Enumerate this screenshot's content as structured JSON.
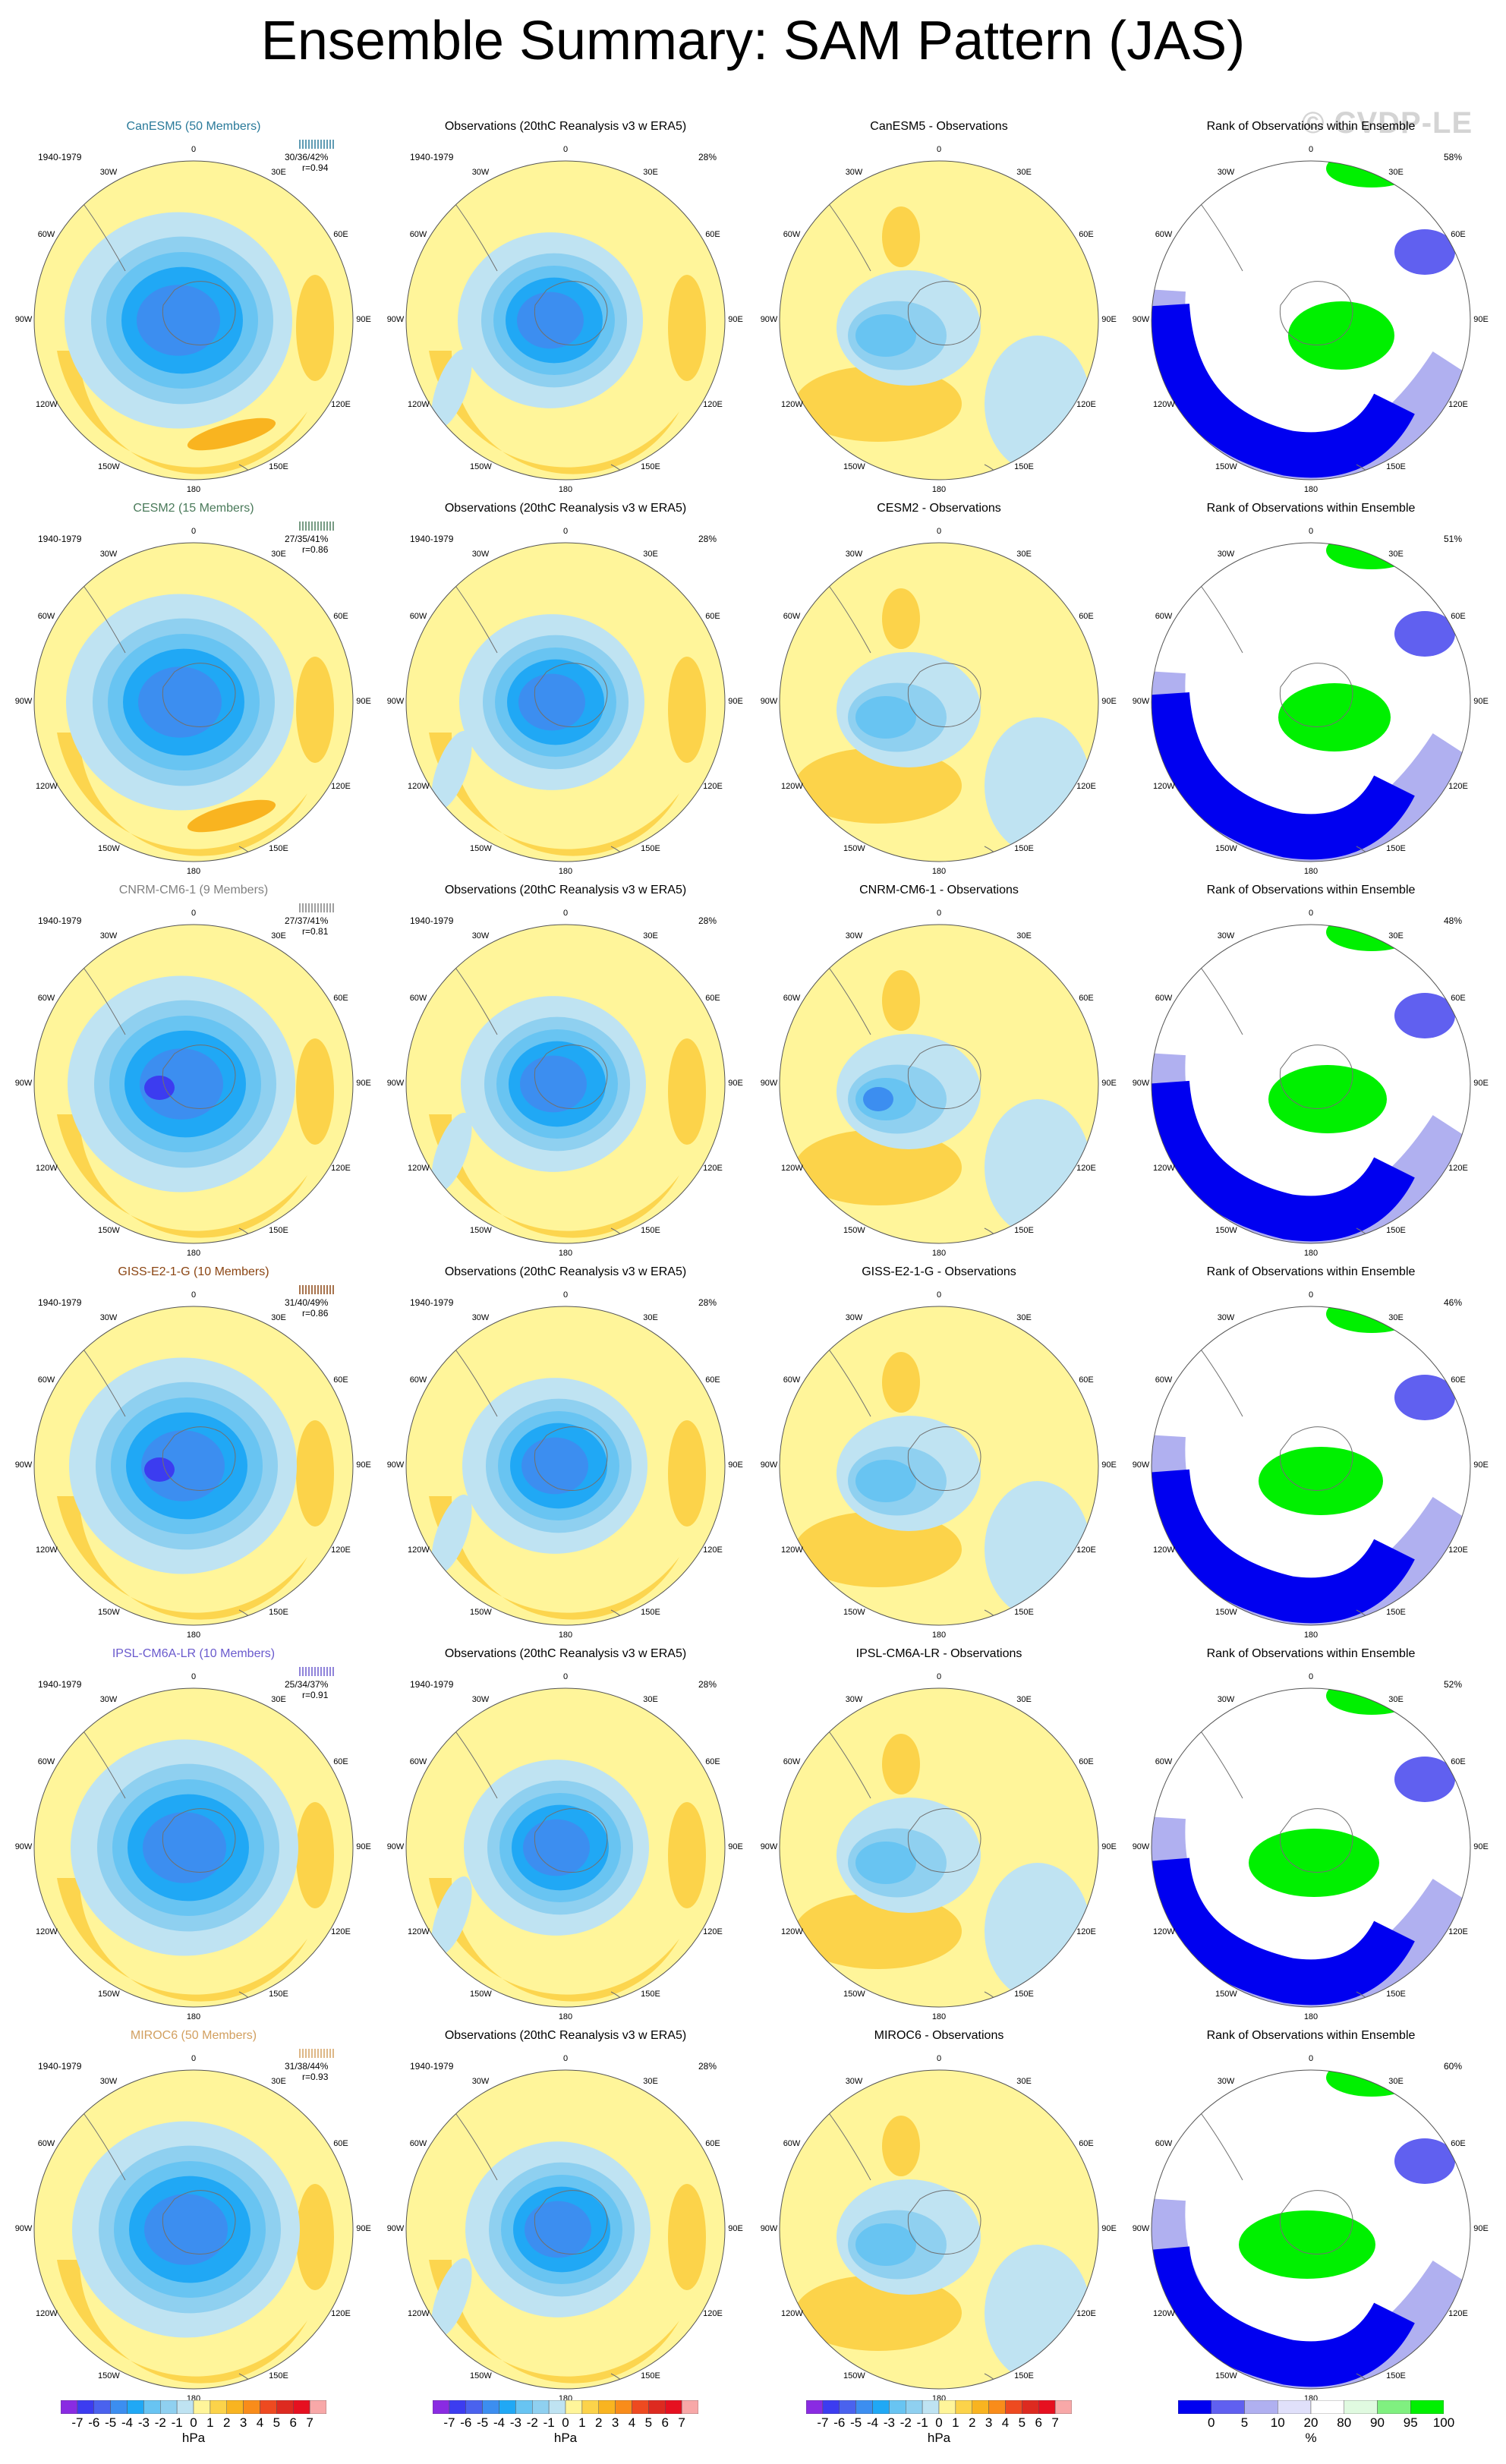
{
  "title": "Ensemble Summary: SAM Pattern (JAS)",
  "watermark": "© CVDP-LE",
  "column_titles": {
    "observations": "Observations (20thC Reanalysis v3 w ERA5)",
    "rank": "Rank of Observations within Ensemble"
  },
  "period_label": "1940-1979",
  "longitude_labels": [
    "0",
    "30E",
    "60E",
    "90E",
    "120E",
    "150E",
    "180",
    "150W",
    "120W",
    "90W",
    "60W",
    "30W"
  ],
  "obs_percent": "28%",
  "rows": [
    {
      "model_title": "CanESM5 (50 Members)",
      "model_color": "#2a7a9a",
      "stats": "30/36/42%",
      "r": "r=0.94",
      "diff_title": "CanESM5 - Observations",
      "rank_percent": "58%"
    },
    {
      "model_title": "CESM2 (15 Members)",
      "model_color": "#4a7a5a",
      "stats": "27/35/41%",
      "r": "r=0.86",
      "diff_title": "CESM2 - Observations",
      "rank_percent": "51%"
    },
    {
      "model_title": "CNRM-CM6-1 (9 Members)",
      "model_color": "#808080",
      "stats": "27/37/41%",
      "r": "r=0.81",
      "diff_title": "CNRM-CM6-1 - Observations",
      "rank_percent": "48%"
    },
    {
      "model_title": "GISS-E2-1-G (10 Members)",
      "model_color": "#8b4513",
      "stats": "31/40/49%",
      "r": "r=0.86",
      "diff_title": "GISS-E2-1-G - Observations",
      "rank_percent": "46%"
    },
    {
      "model_title": "IPSL-CM6A-LR (10 Members)",
      "model_color": "#6a5acd",
      "stats": "25/34/37%",
      "r": "r=0.91",
      "diff_title": "IPSL-CM6A-LR - Observations",
      "rank_percent": "52%"
    },
    {
      "model_title": "MIROC6 (50 Members)",
      "model_color": "#d2a060",
      "stats": "31/38/44%",
      "r": "r=0.93",
      "diff_title": "MIROC6 - Observations",
      "rank_percent": "60%"
    }
  ],
  "colorbars": {
    "pressure": {
      "ticks": [
        "-7",
        "-6",
        "-5",
        "-4",
        "-3",
        "-2",
        "-1",
        "0",
        "1",
        "2",
        "3",
        "4",
        "5",
        "6",
        "7"
      ],
      "colors": [
        "#8a2be2",
        "#3c3cf0",
        "#4a62ee",
        "#3c8ef0",
        "#20a8f5",
        "#68c4f2",
        "#8fd0f0",
        "#bfe3f2",
        "#fff59a",
        "#fcd34a",
        "#f9b420",
        "#f98c1a",
        "#ee4a20",
        "#dd2a20",
        "#e61020",
        "#f8a8a8"
      ],
      "unit": "hPa"
    },
    "rank": {
      "ticks": [
        "0",
        "5",
        "10",
        "20",
        "80",
        "90",
        "95",
        "100"
      ],
      "colors": [
        "#0000f0",
        "#6060f0",
        "#b0b0f0",
        "#e0e0fa",
        "#ffffff",
        "#e0fae0",
        "#80f080",
        "#00f000"
      ],
      "unit": "%"
    }
  },
  "chart_data": [
    {
      "type": "heatmap",
      "title": "CanESM5 (50 Members)",
      "subtitle": "1940-1979",
      "stats": "30/36/42%",
      "r": 0.94,
      "unit": "hPa",
      "scale": [
        -7,
        7
      ]
    },
    {
      "type": "heatmap",
      "title": "Observations (20thC Reanalysis v3 w ERA5)",
      "subtitle": "1940-1979",
      "variance": "28%",
      "unit": "hPa"
    },
    {
      "type": "heatmap",
      "title": "CanESM5 - Observations",
      "unit": "hPa"
    },
    {
      "type": "heatmap",
      "title": "Rank of Observations within Ensemble",
      "variance": "58%",
      "unit": "%"
    },
    {
      "type": "heatmap",
      "title": "CESM2 (15 Members)",
      "stats": "27/35/41%",
      "r": 0.86,
      "unit": "hPa"
    },
    {
      "type": "heatmap",
      "title": "CESM2 - Observations",
      "unit": "hPa"
    },
    {
      "type": "heatmap",
      "title": "Rank of Observations within Ensemble",
      "variance": "51%",
      "unit": "%"
    },
    {
      "type": "heatmap",
      "title": "CNRM-CM6-1 (9 Members)",
      "stats": "27/37/41%",
      "r": 0.81,
      "unit": "hPa"
    },
    {
      "type": "heatmap",
      "title": "CNRM-CM6-1 - Observations",
      "unit": "hPa"
    },
    {
      "type": "heatmap",
      "title": "Rank of Observations within Ensemble",
      "variance": "48%",
      "unit": "%"
    },
    {
      "type": "heatmap",
      "title": "GISS-E2-1-G (10 Members)",
      "stats": "31/40/49%",
      "r": 0.86,
      "unit": "hPa"
    },
    {
      "type": "heatmap",
      "title": "GISS-E2-1-G - Observations",
      "unit": "hPa"
    },
    {
      "type": "heatmap",
      "title": "Rank of Observations within Ensemble",
      "variance": "46%",
      "unit": "%"
    },
    {
      "type": "heatmap",
      "title": "IPSL-CM6A-LR (10 Members)",
      "stats": "25/34/37%",
      "r": 0.91,
      "unit": "hPa"
    },
    {
      "type": "heatmap",
      "title": "IPSL-CM6A-LR - Observations",
      "unit": "hPa"
    },
    {
      "type": "heatmap",
      "title": "Rank of Observations within Ensemble",
      "variance": "52%",
      "unit": "%"
    },
    {
      "type": "heatmap",
      "title": "MIROC6 (50 Members)",
      "stats": "31/38/44%",
      "r": 0.93,
      "unit": "hPa"
    },
    {
      "type": "heatmap",
      "title": "MIROC6 - Observations",
      "unit": "hPa"
    },
    {
      "type": "heatmap",
      "title": "Rank of Observations within Ensemble",
      "variance": "60%",
      "unit": "%"
    }
  ]
}
